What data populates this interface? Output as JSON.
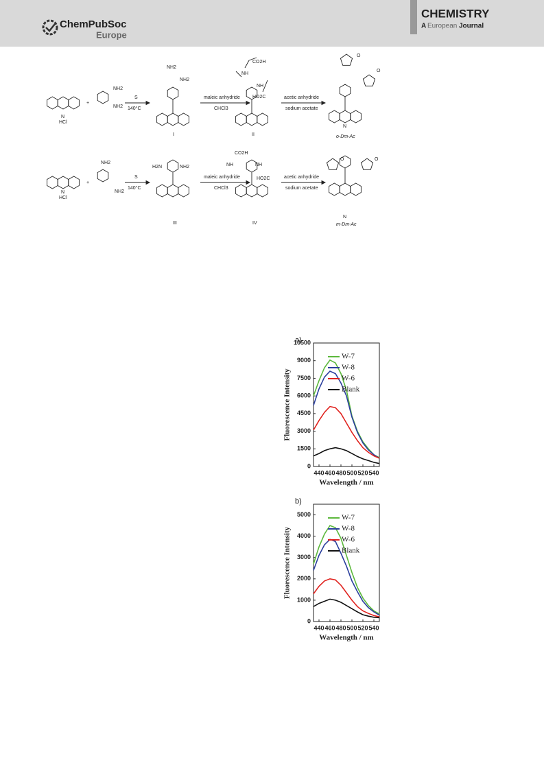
{
  "header": {
    "brand": "ChemPubSoc",
    "brand_sub": "Europe",
    "journal": "CHEMISTRY",
    "journal_sub_a": "A",
    "journal_sub_b": "European",
    "journal_sub_c": "Journal"
  },
  "scheme": {
    "hcl": "HCl",
    "plus": "+",
    "nh2": "NH2",
    "h2n": "H2N",
    "s": "S",
    "temp": "140°C",
    "maleic": "maleic anhydride",
    "chcl3": "CHCl3",
    "ac2o": "acetic anhydride",
    "naoac": "sodium acetate",
    "co2h": "CO2H",
    "ho2c": "HO2C",
    "nh": "NH",
    "n": "N",
    "o": "O",
    "compounds": [
      "I",
      "II",
      "o-Dm-Ac",
      "III",
      "IV",
      "m-Dm-Ac"
    ]
  },
  "chart_data": [
    {
      "type": "line",
      "label": "a)",
      "xlabel": "Wavelength / nm",
      "ylabel": "Fluorescence Intensity",
      "x": [
        430,
        440,
        450,
        460,
        470,
        480,
        490,
        500,
        510,
        520,
        530,
        540,
        550
      ],
      "xlim": [
        430,
        550
      ],
      "xticks": [
        440,
        460,
        480,
        500,
        520,
        540
      ],
      "ylim": [
        0,
        10500
      ],
      "yticks": [
        0,
        1500,
        3000,
        4500,
        6000,
        7500,
        9000,
        10500
      ],
      "series": [
        {
          "name": "W-7",
          "color": "#5cb83c",
          "values": [
            6000,
            7300,
            8400,
            9050,
            8800,
            7900,
            6500,
            4300,
            3000,
            2100,
            1500,
            1000,
            750
          ]
        },
        {
          "name": "W-8",
          "color": "#2b3f9e",
          "values": [
            5200,
            6600,
            7600,
            8100,
            7900,
            7100,
            6000,
            4200,
            2900,
            2000,
            1400,
            1000,
            700
          ]
        },
        {
          "name": "W-6",
          "color": "#e0231f",
          "values": [
            3100,
            3900,
            4600,
            5100,
            5000,
            4500,
            3700,
            2900,
            2200,
            1600,
            1200,
            900,
            700
          ]
        },
        {
          "name": "Blank",
          "color": "#111111",
          "values": [
            900,
            1100,
            1350,
            1500,
            1600,
            1500,
            1350,
            1100,
            850,
            650,
            500,
            350,
            250
          ]
        }
      ]
    },
    {
      "type": "line",
      "label": "b)",
      "xlabel": "Wavelength / nm",
      "ylabel": "Fluorescence Intensity",
      "x": [
        430,
        440,
        450,
        460,
        470,
        480,
        490,
        500,
        510,
        520,
        530,
        540,
        550
      ],
      "xlim": [
        430,
        550
      ],
      "xticks": [
        440,
        460,
        480,
        500,
        520,
        540
      ],
      "ylim": [
        0,
        5500
      ],
      "yticks": [
        0,
        1000,
        2000,
        3000,
        4000,
        5000
      ],
      "series": [
        {
          "name": "W-7",
          "color": "#5cb83c",
          "values": [
            2700,
            3500,
            4100,
            4500,
            4400,
            3900,
            3100,
            2300,
            1600,
            1100,
            750,
            500,
            350
          ]
        },
        {
          "name": "W-8",
          "color": "#2b3f9e",
          "values": [
            2400,
            3100,
            3600,
            3850,
            3750,
            3200,
            2600,
            1900,
            1400,
            950,
            650,
            450,
            300
          ]
        },
        {
          "name": "W-6",
          "color": "#e0231f",
          "values": [
            1300,
            1650,
            1900,
            2000,
            1950,
            1700,
            1350,
            1000,
            700,
            500,
            380,
            280,
            220
          ]
        },
        {
          "name": "Blank",
          "color": "#111111",
          "values": [
            700,
            850,
            950,
            1050,
            1000,
            900,
            750,
            600,
            450,
            320,
            250,
            200,
            180
          ]
        }
      ]
    }
  ]
}
